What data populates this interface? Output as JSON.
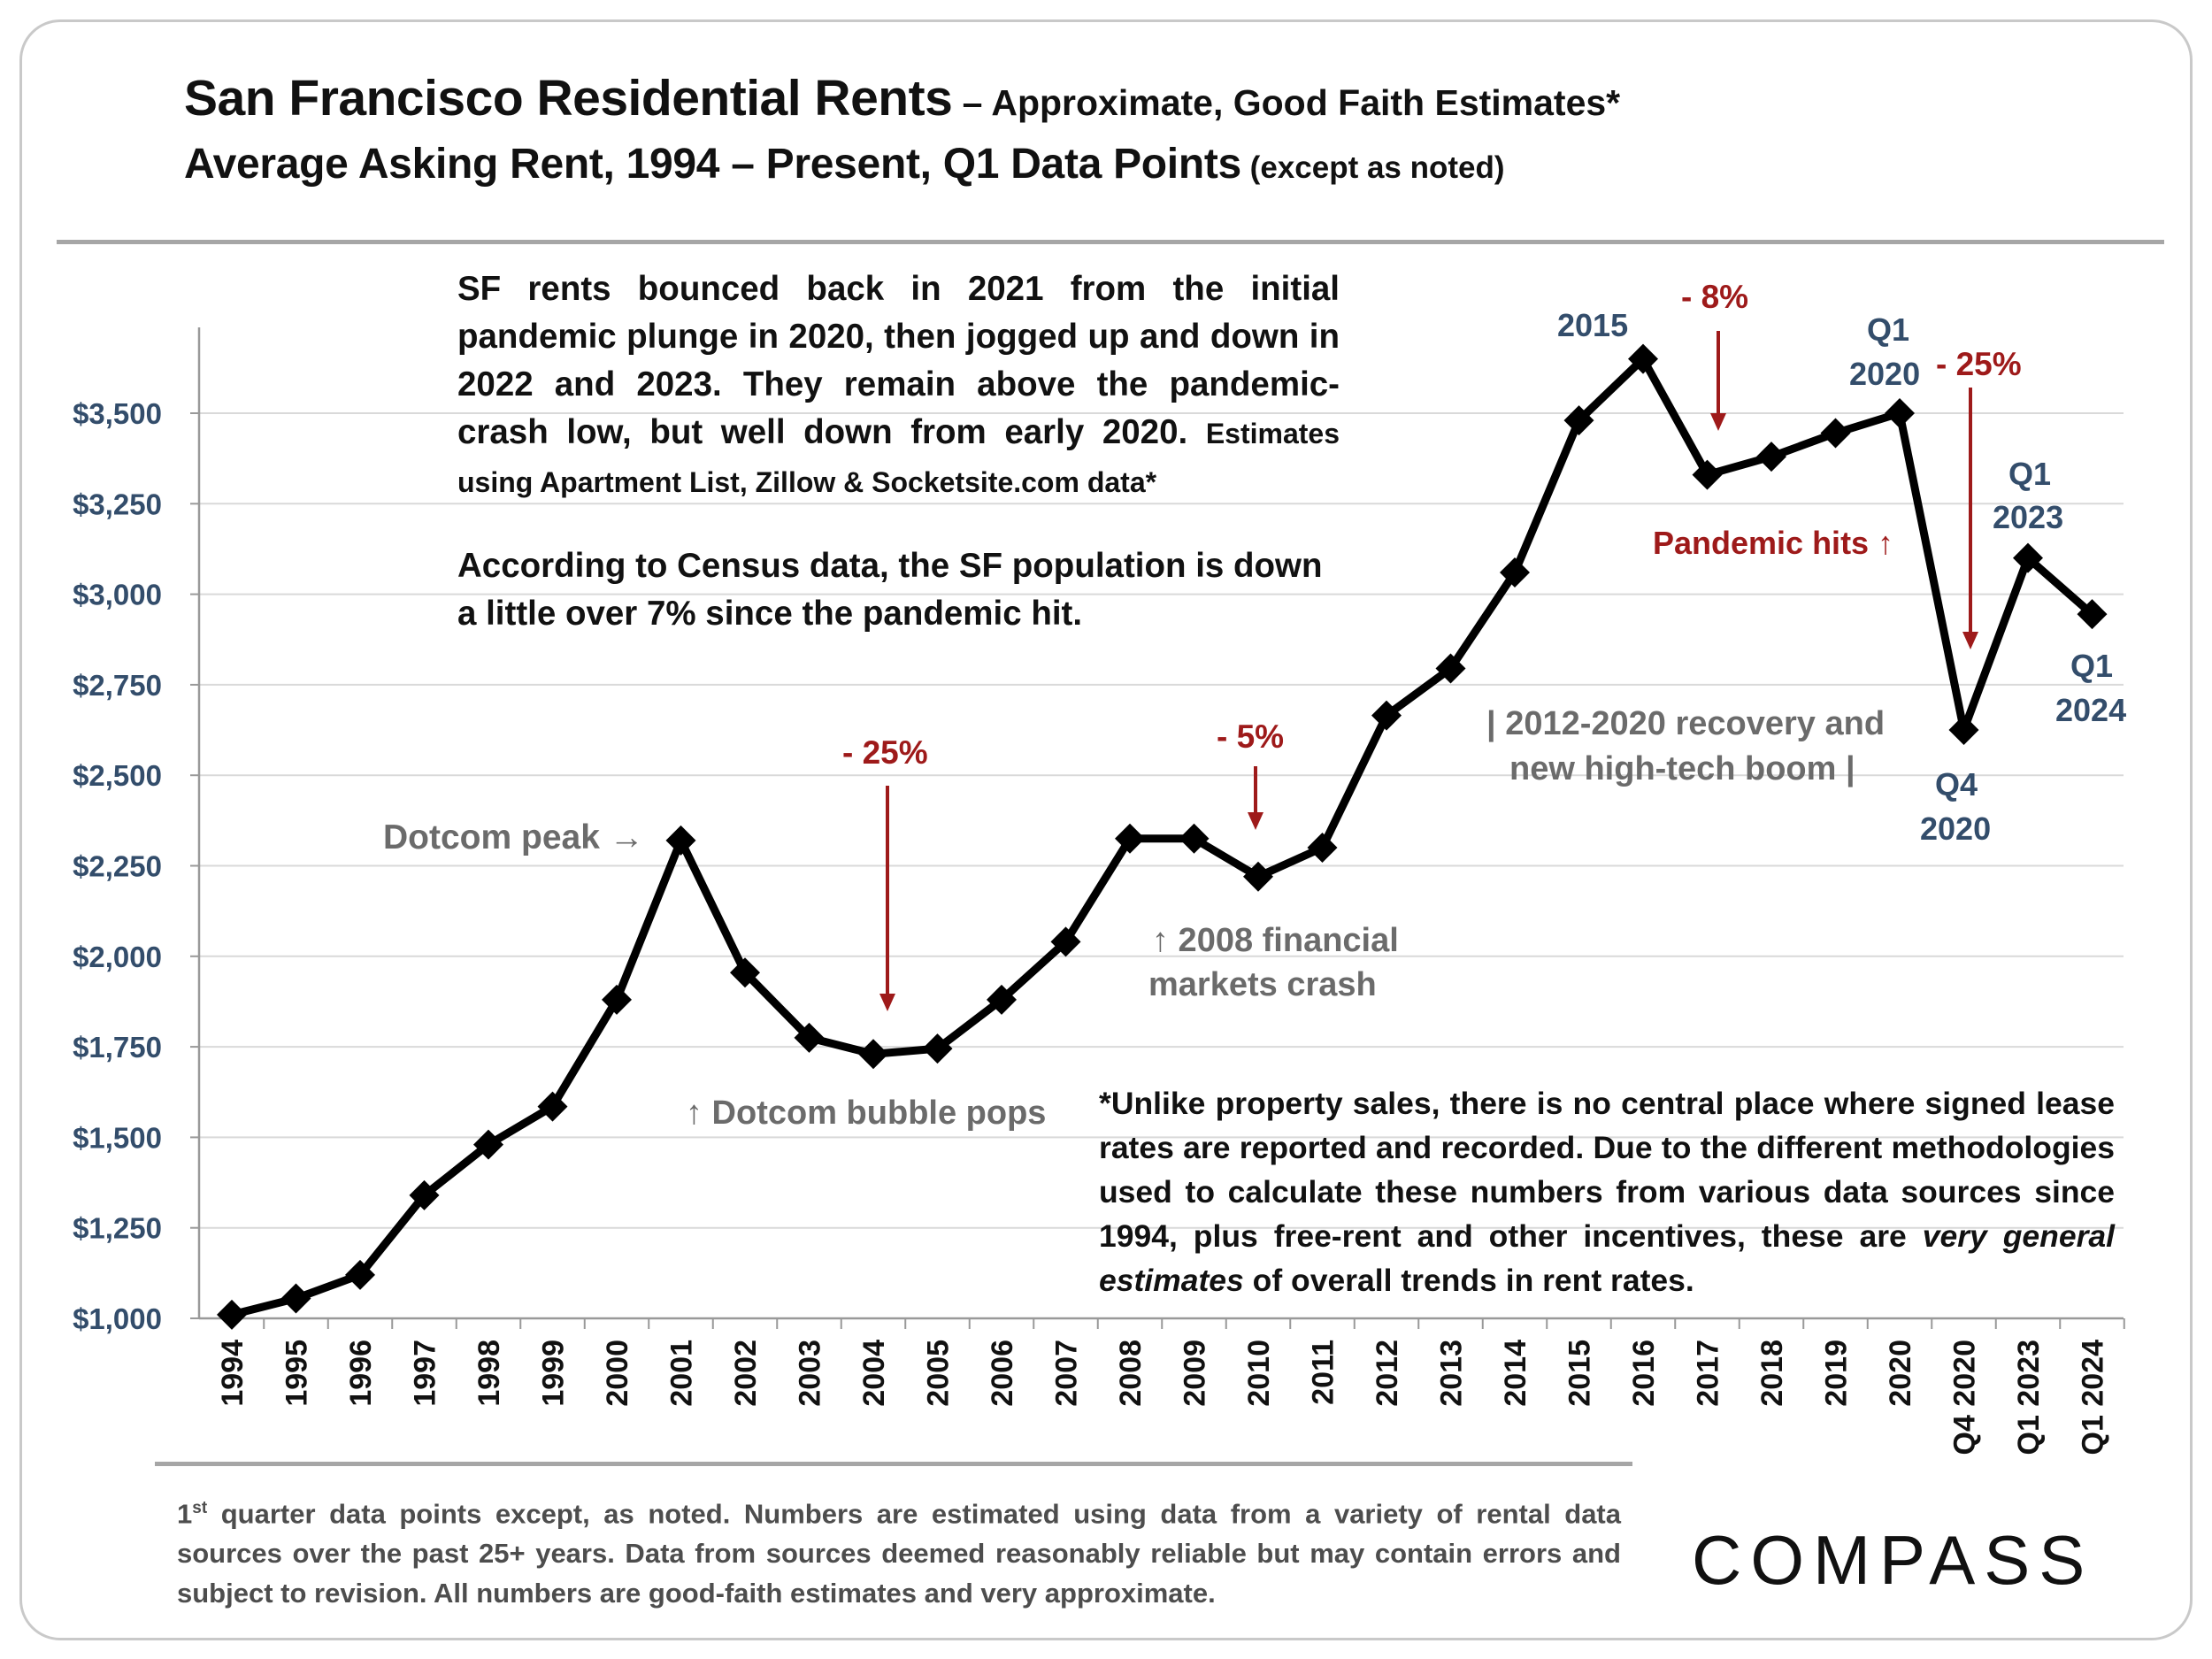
{
  "title": {
    "line1_main": "San Francisco Residential Rents",
    "line1_sub": " – Approximate, Good Faith Estimates*",
    "line2_main": "Average Asking Rent, 1994 – Present, Q1 Data Points",
    "line2_sub": " (except as noted)"
  },
  "notes": {
    "top_left_main": "SF rents bounced back in 2021 from the initial pandemic plunge in 2020, then jogged up and down in 2022 and 2023. They remain above the pandemic-crash low, but well down from early 2020.",
    "top_left_small": "Estimates using Apartment List, Zillow & Socketsite.com data*",
    "census": "According to Census data, the SF population is down a little over 7% since the pandemic hit.",
    "disclaimer_1": "*Unlike property sales, there is no central place where signed lease rates are reported and recorded. Due to the different methodologies used to calculate these numbers from various data sources since 1994, plus free-rent and other incentives, these are ",
    "disclaimer_em": "very general estimates",
    "disclaimer_2": " of overall trends in rent rates."
  },
  "annotations": {
    "dotcom_peak": "Dotcom peak →",
    "dotcom_drop_pct": "- 25%",
    "dotcom_pops": "↑ Dotcom bubble pops",
    "crash_pct": "- 5%",
    "crash_line1": "↑ 2008 financial",
    "crash_line2": "markets crash",
    "recovery_line1": "| 2012-2020 recovery and",
    "recovery_line2": "new high-tech boom |",
    "peak_2015": "2015",
    "drop_8_pct": "- 8%",
    "q1_2020_line1": "Q1",
    "q1_2020_line2": "2020",
    "pandemic_pct": "- 25%",
    "pandemic_hits": "Pandemic hits ↑",
    "q1_2023_line1": "Q1",
    "q1_2023_line2": "2023",
    "q4_2020_line1": "Q4",
    "q4_2020_line2": "2020",
    "q1_2024_line1": "Q1",
    "q1_2024_line2": "2024"
  },
  "footer": {
    "sup": "st",
    "lead": "1",
    "text": " quarter data points except, as noted. Numbers are estimated using data from a variety of rental data sources over the past 25+ years. Data from sources deemed reasonably reliable but may contain errors and subject to revision. All numbers are good-faith estimates and very approximate."
  },
  "logo": "COMPASS",
  "colors": {
    "line": "#000000",
    "annotation_red": "#9e1a1a",
    "annotation_gray": "#6b6b6b",
    "annotation_blue": "#334d6b",
    "axis_text": "#334d6b"
  },
  "chart_data": {
    "type": "line",
    "title": "San Francisco Residential Rents – Approximate, Good Faith Estimates*",
    "subtitle": "Average Asking Rent, 1994 – Present, Q1 Data Points (except as noted)",
    "categories": [
      "1994",
      "1995",
      "1996",
      "1997",
      "1998",
      "1999",
      "2000",
      "2001",
      "2002",
      "2003",
      "2004",
      "2005",
      "2006",
      "2007",
      "2008",
      "2009",
      "2010",
      "2011",
      "2012",
      "2013",
      "2014",
      "2015",
      "2016",
      "2017",
      "2018",
      "2019",
      "2020",
      "Q4 2020",
      "Q1 2023",
      "Q1 2024"
    ],
    "values": [
      1010,
      1055,
      1120,
      1340,
      1480,
      1585,
      1880,
      2320,
      1955,
      1775,
      1730,
      1745,
      1880,
      2040,
      2325,
      2325,
      2220,
      2300,
      2665,
      2795,
      3060,
      3480,
      3650,
      3330,
      3380,
      3445,
      3500,
      2625,
      3100,
      2945
    ],
    "y_ticks": [
      "$1,000",
      "$1,250",
      "$1,500",
      "$1,750",
      "$2,000",
      "$2,250",
      "$2,500",
      "$2,750",
      "$3,000",
      "$3,250",
      "$3,500"
    ],
    "y_tick_values": [
      1000,
      1250,
      1500,
      1750,
      2000,
      2250,
      2500,
      2750,
      3000,
      3250,
      3500
    ],
    "ylim": [
      1000,
      3730
    ],
    "grid": "horizontal",
    "marker": "diamond",
    "xlabel": "",
    "ylabel": ""
  }
}
